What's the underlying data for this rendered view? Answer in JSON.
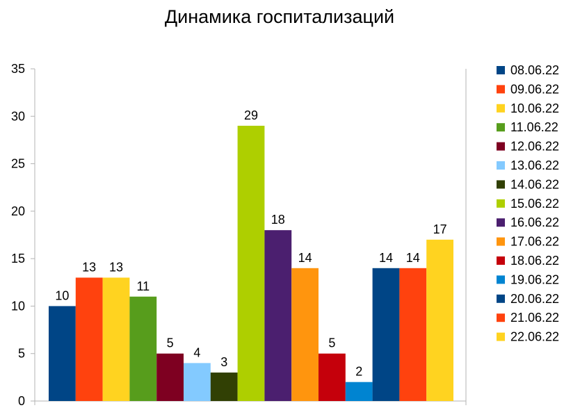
{
  "chart_data": {
    "type": "bar",
    "title": "Динамика госпитализаций",
    "ylim": [
      0,
      35
    ],
    "yticks": [
      0,
      5,
      10,
      15,
      20,
      25,
      30,
      35
    ],
    "grid": "none",
    "legend_position": "right",
    "series": [
      {
        "name": "08.06.22",
        "value": 10,
        "color": "#004586"
      },
      {
        "name": "09.06.22",
        "value": 13,
        "color": "#ff420e"
      },
      {
        "name": "10.06.22",
        "value": 13,
        "color": "#ffd320"
      },
      {
        "name": "11.06.22",
        "value": 11,
        "color": "#579d1c"
      },
      {
        "name": "12.06.22",
        "value": 5,
        "color": "#7e0021"
      },
      {
        "name": "13.06.22",
        "value": 4,
        "color": "#83caff"
      },
      {
        "name": "14.06.22",
        "value": 3,
        "color": "#314004"
      },
      {
        "name": "15.06.22",
        "value": 29,
        "color": "#aecf00"
      },
      {
        "name": "16.06.22",
        "value": 18,
        "color": "#4b1f6f"
      },
      {
        "name": "17.06.22",
        "value": 14,
        "color": "#ff950e"
      },
      {
        "name": "18.06.22",
        "value": 5,
        "color": "#c5000b"
      },
      {
        "name": "19.06.22",
        "value": 2,
        "color": "#0084d1"
      },
      {
        "name": "20.06.22",
        "value": 14,
        "color": "#004586"
      },
      {
        "name": "21.06.22",
        "value": 14,
        "color": "#ff420e"
      },
      {
        "name": "22.06.22",
        "value": 17,
        "color": "#ffd320"
      }
    ]
  }
}
